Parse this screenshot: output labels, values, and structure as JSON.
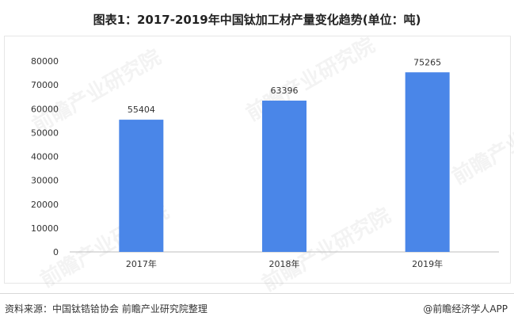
{
  "title": "图表1：2017-2019年中国钛加工材产量变化趋势(单位：吨)",
  "source": "资料来源：中国钛锆铪协会  前瞻产业研究院整理",
  "brand": "@前瞻经济学人APP",
  "watermark": "前瞻产业研究院",
  "colors": {
    "bar": "#4a86e8"
  },
  "chart_data": {
    "type": "bar",
    "categories": [
      "2017年",
      "2018年",
      "2019年"
    ],
    "values": [
      55404,
      63396,
      75265
    ],
    "ylim": [
      0,
      80000
    ],
    "yticks": [
      0,
      10000,
      20000,
      30000,
      40000,
      50000,
      60000,
      70000,
      80000
    ],
    "data_labels": [
      "55404",
      "63396",
      "75265"
    ],
    "grid": false,
    "legend": "none"
  }
}
